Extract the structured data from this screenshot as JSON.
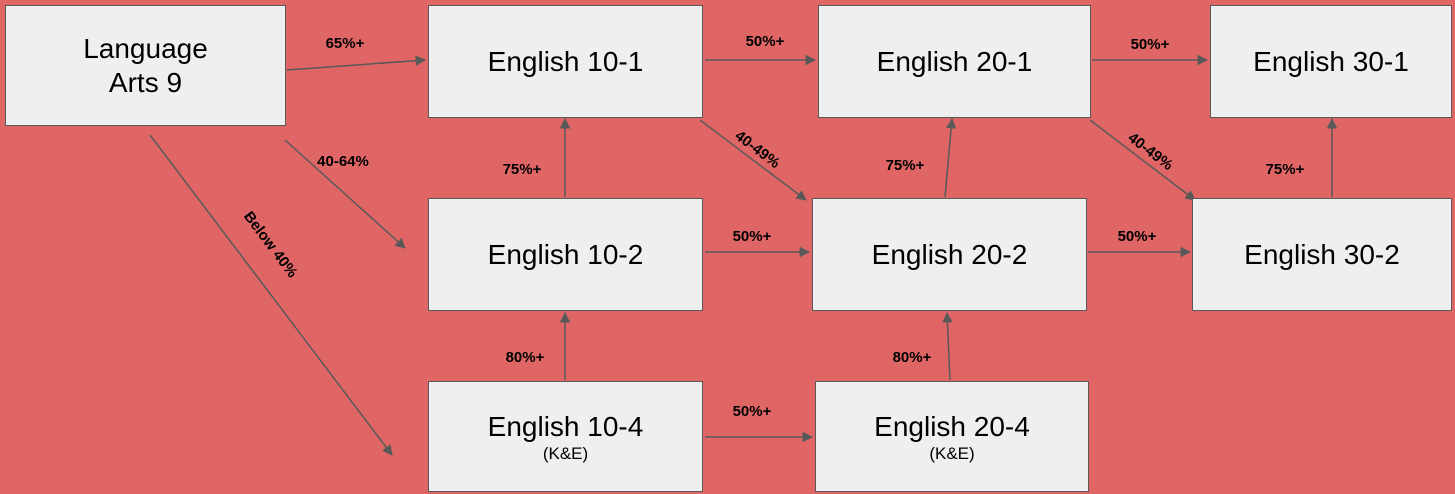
{
  "nodes": [
    {
      "label": "Language Arts 9"
    },
    {
      "label": "English 10-1"
    },
    {
      "label": "English 20-1"
    },
    {
      "label": "English 30-1"
    },
    {
      "label": "English 10-2"
    },
    {
      "label": "English 20-2"
    },
    {
      "label": "English 30-2"
    },
    {
      "label": "English 10-4",
      "sublabel": "(K&E)"
    },
    {
      "label": "English 20-4",
      "sublabel": "(K&E)"
    }
  ],
  "edges": [
    {
      "label": "65%+"
    },
    {
      "label": "40-64%"
    },
    {
      "label": "Below 40%"
    },
    {
      "label": "50%+"
    },
    {
      "label": "40-49%"
    },
    {
      "label": "75%+"
    },
    {
      "label": "50%+"
    },
    {
      "label": "75%+"
    },
    {
      "label": "50%+"
    },
    {
      "label": "40-49%"
    },
    {
      "label": "75%+"
    },
    {
      "label": "50%+"
    },
    {
      "label": "80%+"
    },
    {
      "label": "50%+"
    },
    {
      "label": "80%+"
    }
  ]
}
